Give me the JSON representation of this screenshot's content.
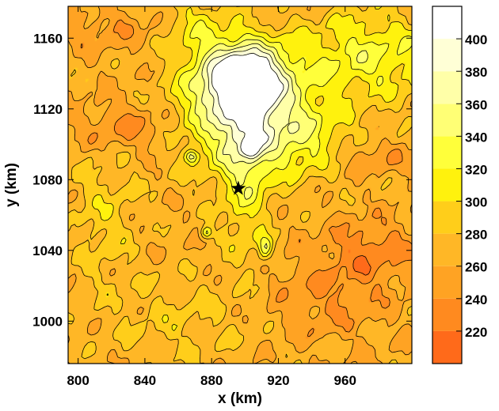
{
  "chart_data": {
    "type": "heatmap",
    "title": "",
    "xlabel": "x (km)",
    "ylabel": "y (km)",
    "xlim": [
      794,
      1000
    ],
    "ylim": [
      976,
      1178
    ],
    "x_ticks": [
      800,
      840,
      880,
      920,
      960
    ],
    "y_ticks": [
      1000,
      1040,
      1080,
      1120,
      1160
    ],
    "colorbar": {
      "range": [
        200,
        420
      ],
      "levels": [
        220,
        240,
        260,
        280,
        300,
        320,
        340,
        360,
        380,
        400
      ],
      "tick_labels": [
        "220",
        "240",
        "260",
        "280",
        "300",
        "320",
        "340",
        "360",
        "380",
        "400"
      ],
      "bands": [
        {
          "from": 200,
          "to": 220,
          "color": "#FF6A1A"
        },
        {
          "from": 220,
          "to": 240,
          "color": "#FF8A1F"
        },
        {
          "from": 240,
          "to": 260,
          "color": "#FFA323"
        },
        {
          "from": 260,
          "to": 280,
          "color": "#FFB726"
        },
        {
          "from": 280,
          "to": 300,
          "color": "#FFCE1A"
        },
        {
          "from": 300,
          "to": 320,
          "color": "#FFF20D"
        },
        {
          "from": 320,
          "to": 340,
          "color": "#FFFF3A"
        },
        {
          "from": 340,
          "to": 360,
          "color": "#FFFF75"
        },
        {
          "from": 360,
          "to": 380,
          "color": "#FFFFA8"
        },
        {
          "from": 380,
          "to": 400,
          "color": "#FFFFD6"
        },
        {
          "from": 400,
          "to": 420,
          "color": "#FFFFFF"
        }
      ]
    },
    "field": {
      "background": 265,
      "features": [
        {
          "x": 898,
          "y": 1138,
          "value": 410,
          "sx": 18,
          "sy": 14
        },
        {
          "x": 900,
          "y": 1116,
          "value": 355,
          "sx": 28,
          "sy": 22
        },
        {
          "x": 900,
          "y": 1085,
          "value": 315,
          "sx": 10,
          "sy": 35
        },
        {
          "x": 975,
          "y": 1150,
          "value": 325,
          "sx": 32,
          "sy": 18
        },
        {
          "x": 935,
          "y": 1102,
          "value": 305,
          "sx": 22,
          "sy": 14
        },
        {
          "x": 830,
          "y": 1110,
          "value": 232,
          "sx": 22,
          "sy": 10
        },
        {
          "x": 975,
          "y": 1093,
          "value": 238,
          "sx": 18,
          "sy": 6
        },
        {
          "x": 975,
          "y": 1040,
          "value": 228,
          "sx": 20,
          "sy": 12
        },
        {
          "x": 950,
          "y": 1012,
          "value": 240,
          "sx": 25,
          "sy": 15
        },
        {
          "x": 815,
          "y": 1060,
          "value": 292,
          "sx": 14,
          "sy": 28
        },
        {
          "x": 860,
          "y": 1000,
          "value": 285,
          "sx": 30,
          "sy": 18
        },
        {
          "x": 870,
          "y": 1168,
          "value": 300,
          "sx": 14,
          "sy": 12
        },
        {
          "x": 820,
          "y": 1165,
          "value": 245,
          "sx": 20,
          "sy": 8
        },
        {
          "x": 912,
          "y": 1042,
          "value": 328,
          "sx": 3,
          "sy": 5
        },
        {
          "x": 877,
          "y": 1050,
          "value": 330,
          "sx": 2.5,
          "sy": 2.5
        },
        {
          "x": 868,
          "y": 1093,
          "value": 335,
          "sx": 2.5,
          "sy": 2.5
        },
        {
          "x": 903,
          "y": 1098,
          "value": 345,
          "sx": 3,
          "sy": 3
        }
      ]
    },
    "marker": {
      "x": 896,
      "y": 1075,
      "symbol": "star",
      "color": "#000000"
    }
  }
}
